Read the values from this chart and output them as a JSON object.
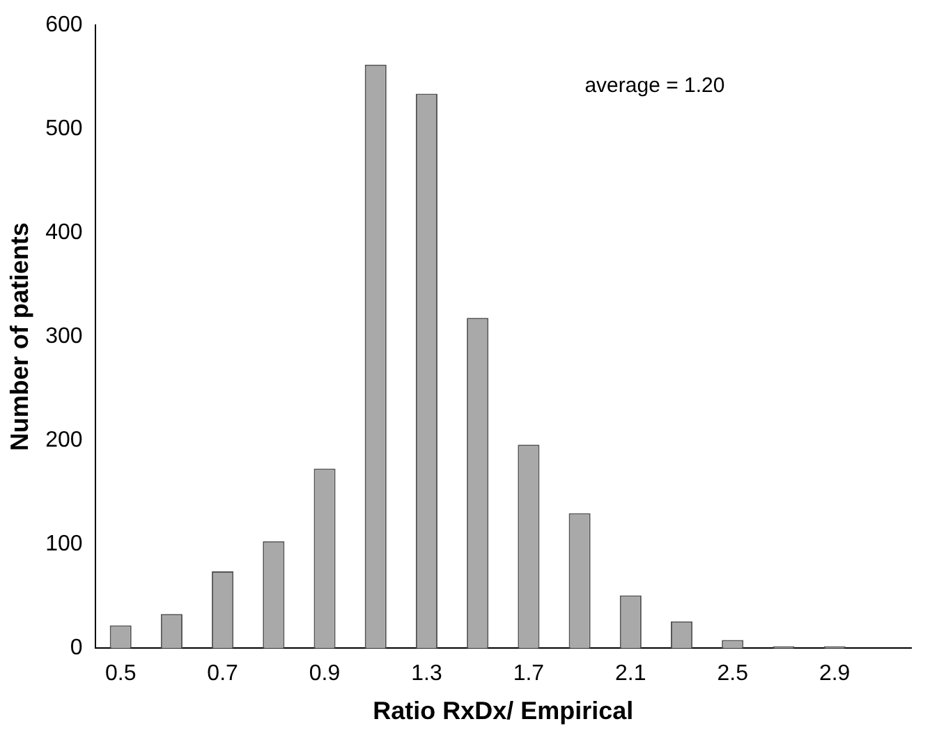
{
  "chart_data": {
    "type": "bar",
    "xlabel": "Ratio RxDx/ Empirical",
    "ylabel": "Number of patients",
    "categories": [
      "0.5",
      null,
      "0.7",
      null,
      "0.9",
      null,
      "1.3",
      null,
      "1.7",
      null,
      "2.1",
      null,
      "2.5",
      null,
      "2.9",
      null
    ],
    "values": [
      22,
      33,
      74,
      103,
      173,
      562,
      534,
      318,
      196,
      130,
      51,
      26,
      8,
      2,
      2,
      null
    ],
    "color": "#a9a9a9",
    "ylim": [
      0,
      600
    ],
    "yticks": [
      0,
      100,
      200,
      300,
      400,
      500,
      600
    ],
    "grid": false,
    "legend": false,
    "annotations": [
      "average = 1.20"
    ]
  }
}
